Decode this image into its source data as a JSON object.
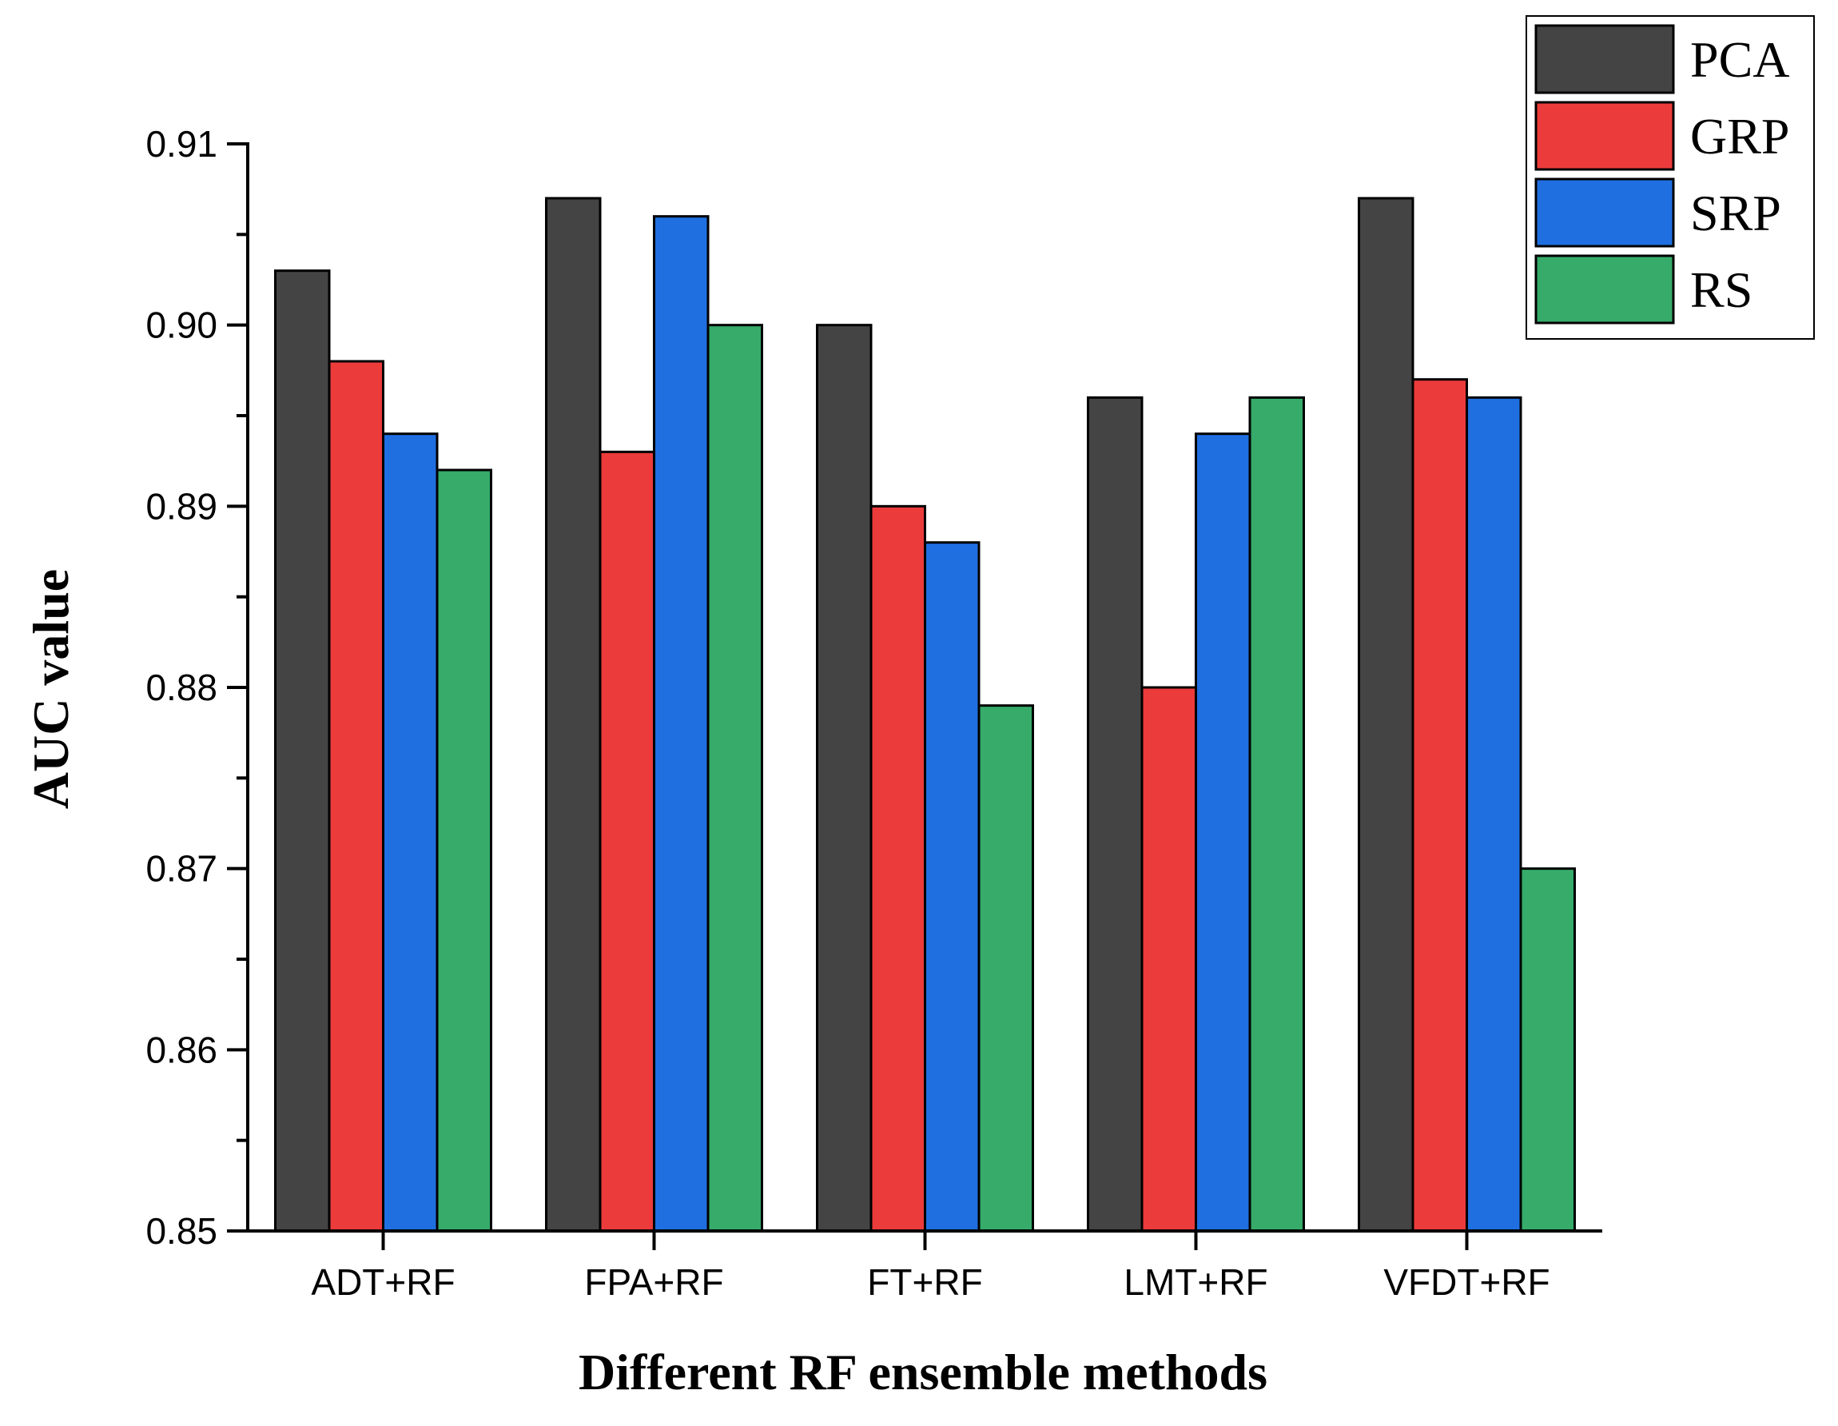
{
  "chart_data": {
    "type": "bar",
    "title": "",
    "xlabel": "Different RF ensemble methods",
    "ylabel": "AUC value",
    "ylim": [
      0.85,
      0.91
    ],
    "yticks": [
      "0.85",
      "0.86",
      "0.87",
      "0.88",
      "0.89",
      "0.90",
      "0.91"
    ],
    "categories": [
      "ADT+RF",
      "FPA+RF",
      "FT+RF",
      "LMT+RF",
      "VFDT+RF"
    ],
    "series": [
      {
        "name": "PCA",
        "color": "#444444",
        "values": [
          0.903,
          0.907,
          0.9,
          0.896,
          0.907
        ]
      },
      {
        "name": "GRP",
        "color": "#ec3b3b",
        "values": [
          0.898,
          0.893,
          0.89,
          0.88,
          0.897
        ]
      },
      {
        "name": "SRP",
        "color": "#1f6fe0",
        "values": [
          0.894,
          0.906,
          0.888,
          0.894,
          0.896
        ]
      },
      {
        "name": "RS",
        "color": "#36ab6a",
        "values": [
          0.892,
          0.9,
          0.879,
          0.896,
          0.87
        ]
      }
    ],
    "legend_position": "top-right",
    "grid": false
  }
}
